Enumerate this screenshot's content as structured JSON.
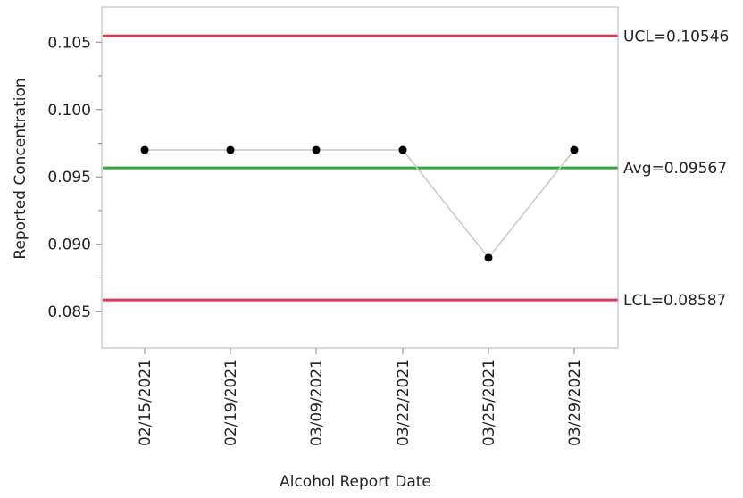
{
  "chart_data": {
    "type": "line",
    "title": "",
    "xlabel": "Alcohol Report Date",
    "ylabel": "Reported Concentration",
    "categories": [
      "02/15/2021",
      "02/19/2021",
      "03/09/2021",
      "03/22/2021",
      "03/25/2021",
      "03/29/2021"
    ],
    "series": [
      {
        "values": [
          0.097,
          0.097,
          0.097,
          0.097,
          0.089,
          0.097
        ],
        "line_color": "#c8c8c8",
        "marker_color": "#000000"
      }
    ],
    "ylim": [
      0.0823,
      0.1076
    ],
    "yticks": [
      0.085,
      0.09,
      0.095,
      0.1,
      0.105
    ],
    "ytick_labels": [
      "0.085",
      "0.090",
      "0.095",
      "0.100",
      "0.105"
    ],
    "grid": false,
    "legend": "none",
    "control_limits": [
      {
        "label": "UCL=0.10546",
        "value": 0.10546,
        "color": "#e8354f"
      },
      {
        "label": "Avg=0.09567",
        "value": 0.09567,
        "color": "#2ea836"
      },
      {
        "label": "LCL=0.08587",
        "value": 0.08587,
        "color": "#e8354f"
      }
    ]
  }
}
